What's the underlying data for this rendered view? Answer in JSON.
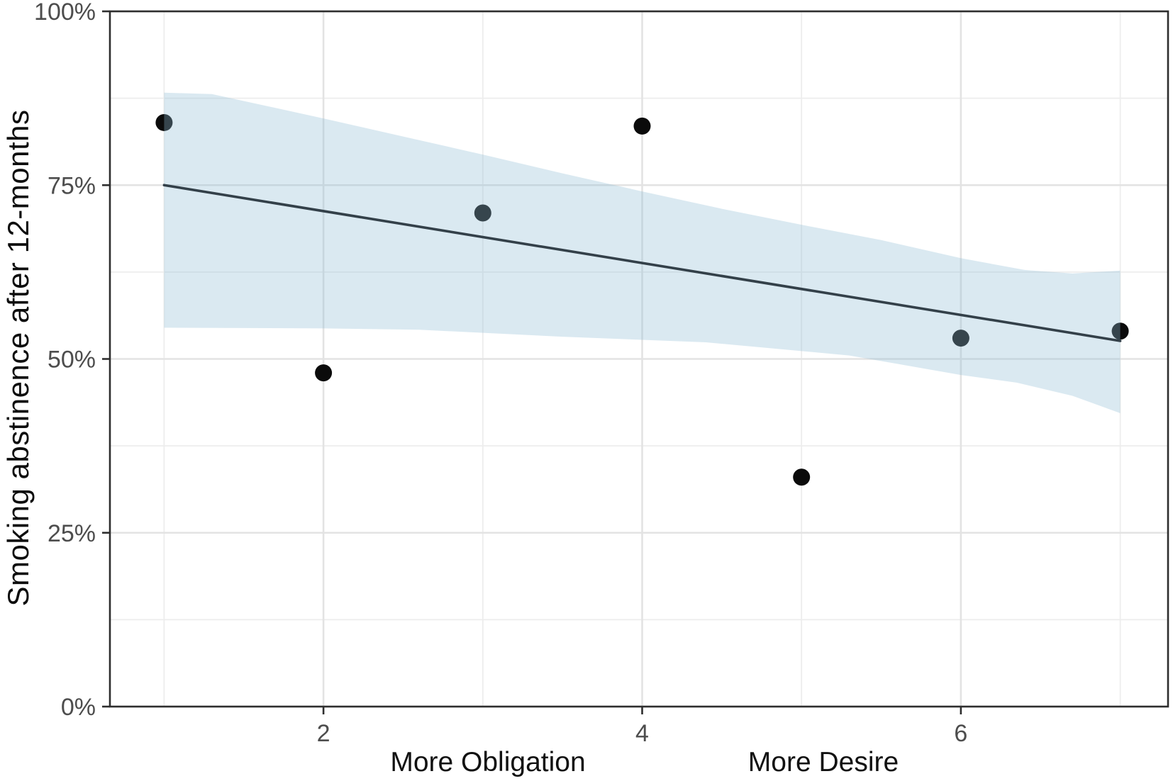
{
  "chart_data": {
    "type": "scatter",
    "title": "",
    "xlabel": "",
    "ylabel": "Smoking abstinence after 12-months",
    "xlabel_annotations": [
      {
        "text": "More Obligation"
      },
      {
        "text": "More Desire"
      }
    ],
    "x_ticks": [
      {
        "value": 2,
        "label": "2"
      },
      {
        "value": 4,
        "label": "4"
      },
      {
        "value": 6,
        "label": "6"
      }
    ],
    "x_minor_gridlines": [
      1,
      3,
      5,
      7
    ],
    "y_ticks": [
      {
        "value": 0,
        "label": "0%"
      },
      {
        "value": 25,
        "label": "25%"
      },
      {
        "value": 50,
        "label": "50%"
      },
      {
        "value": 75,
        "label": "75%"
      },
      {
        "value": 100,
        "label": "100%"
      }
    ],
    "y_minor_gridlines": [
      12.5,
      37.5,
      62.5,
      87.5
    ],
    "xlim": [
      0.66,
      7.3
    ],
    "ylim": [
      0,
      100
    ],
    "grid": true,
    "legend": "none",
    "points": [
      {
        "x": 1,
        "y": 84
      },
      {
        "x": 2,
        "y": 48
      },
      {
        "x": 3,
        "y": 71
      },
      {
        "x": 4,
        "y": 83.5
      },
      {
        "x": 5,
        "y": 33
      },
      {
        "x": 6,
        "y": 53
      },
      {
        "x": 7,
        "y": 54
      }
    ],
    "regression_line": [
      {
        "x": 1,
        "y": 75.0
      },
      {
        "x": 7,
        "y": 52.6
      }
    ],
    "confidence_band": {
      "upper": [
        {
          "x": 1.0,
          "y": 88.3
        },
        {
          "x": 1.3,
          "y": 88.1
        },
        {
          "x": 2.0,
          "y": 84.6
        },
        {
          "x": 2.5,
          "y": 82.0
        },
        {
          "x": 3.0,
          "y": 79.4
        },
        {
          "x": 3.5,
          "y": 76.7
        },
        {
          "x": 4.0,
          "y": 74.1
        },
        {
          "x": 4.5,
          "y": 71.6
        },
        {
          "x": 5.0,
          "y": 69.3
        },
        {
          "x": 5.5,
          "y": 67.1
        },
        {
          "x": 6.0,
          "y": 64.5
        },
        {
          "x": 6.4,
          "y": 62.8
        },
        {
          "x": 6.7,
          "y": 62.3
        },
        {
          "x": 7.0,
          "y": 62.7
        }
      ],
      "lower": [
        {
          "x": 1.0,
          "y": 54.5
        },
        {
          "x": 2.0,
          "y": 54.4
        },
        {
          "x": 2.6,
          "y": 54.2
        },
        {
          "x": 3.5,
          "y": 53.2
        },
        {
          "x": 4.4,
          "y": 52.4
        },
        {
          "x": 5.3,
          "y": 50.5
        },
        {
          "x": 6.0,
          "y": 47.7
        },
        {
          "x": 6.35,
          "y": 46.6
        },
        {
          "x": 6.7,
          "y": 44.7
        },
        {
          "x": 7.0,
          "y": 42.2
        }
      ]
    },
    "colors": {
      "point": "#0b0b0b",
      "line": "#334049",
      "band": "#90bbd3",
      "band_opacity": 0.33,
      "grid_major": "#e3e3e3",
      "grid_minor": "#ededed",
      "border": "#2e2e2e",
      "tick_text": "#4d4d4d",
      "background": "#ffffff"
    }
  }
}
